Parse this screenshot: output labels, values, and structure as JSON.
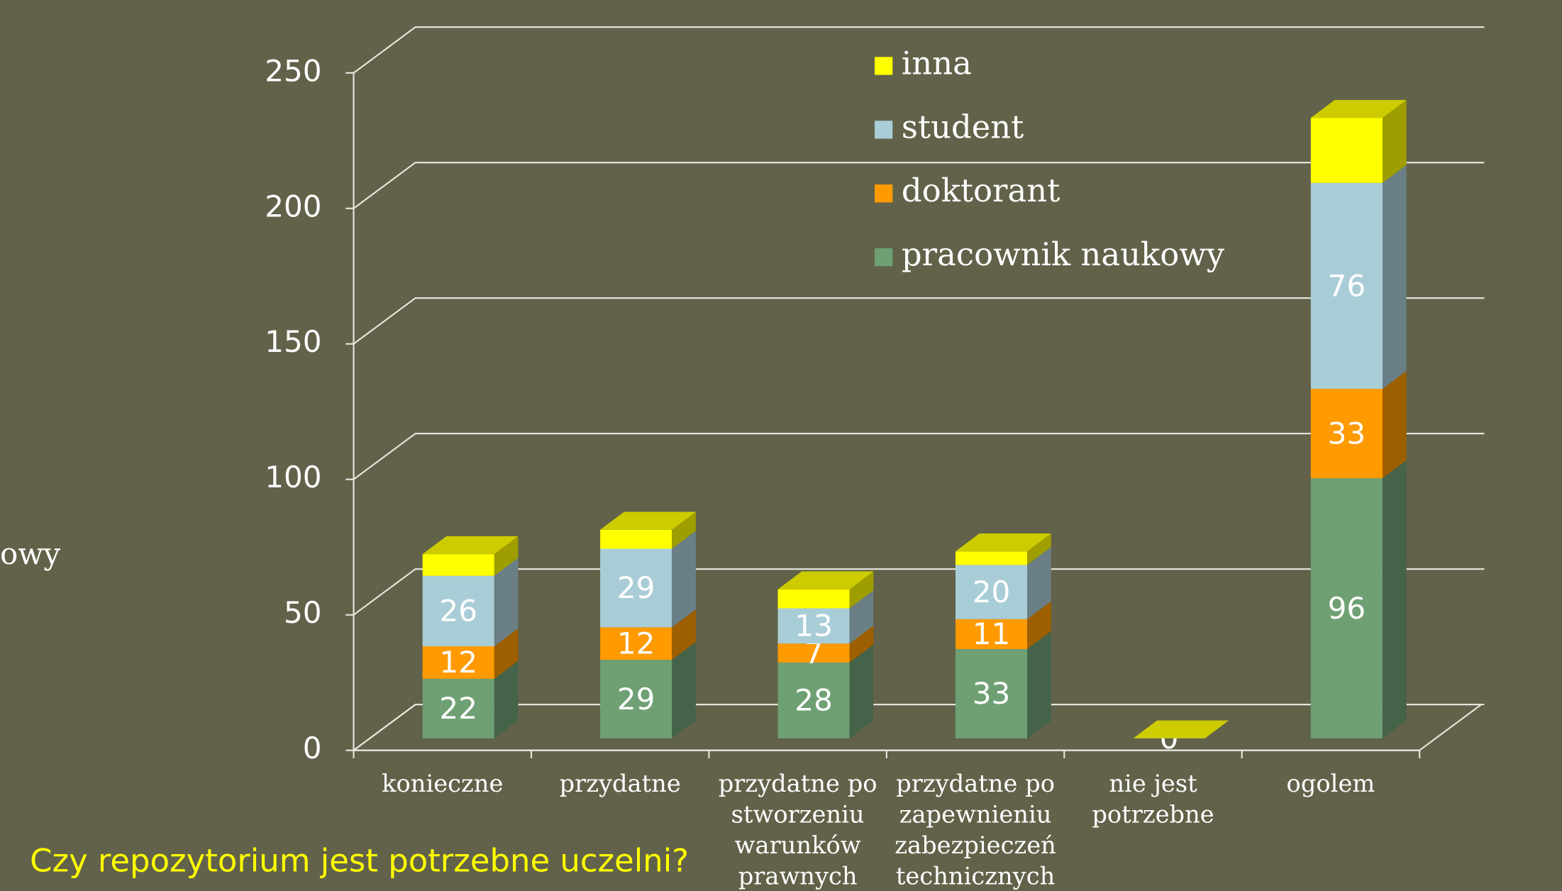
{
  "chart_data": {
    "type": "bar3d_stacked",
    "title": "Czy repozytorium jest potrzebne uczelni?",
    "annotations": [
      "owy"
    ],
    "categories": [
      "konieczne",
      "przydatne",
      "przydatne po stworzeniu warunków prawnych",
      "przydatne po zapewnieniu zabezpieczeń technicznych",
      "nie jest potrzebne",
      "ogolem"
    ],
    "series": [
      {
        "name": "pracownik naukowy",
        "color": "#6fa074",
        "values": [
          22,
          29,
          28,
          33,
          0,
          96
        ]
      },
      {
        "name": "doktorant",
        "color": "#ff9a00",
        "values": [
          12,
          12,
          7,
          11,
          0,
          33
        ]
      },
      {
        "name": "student",
        "color": "#a9cdd6",
        "values": [
          26,
          29,
          13,
          20,
          0,
          76
        ]
      },
      {
        "name": "inna",
        "color": "#ffff00",
        "values": [
          8,
          7,
          7,
          5,
          0,
          24
        ]
      }
    ],
    "labeled_series": [
      0,
      1,
      2
    ],
    "ylim": [
      0,
      250
    ],
    "yticks": [
      0,
      50,
      100,
      150,
      200,
      250
    ],
    "grid": true,
    "legend": "top"
  }
}
